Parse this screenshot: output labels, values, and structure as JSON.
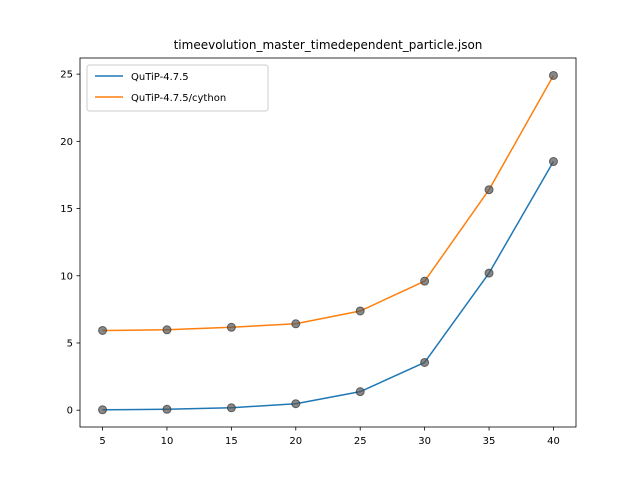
{
  "chart_data": {
    "type": "line",
    "title": "timeevolution_master_timedependent_particle.json",
    "xlabel": "",
    "ylabel": "",
    "x": [
      5,
      10,
      15,
      20,
      25,
      30,
      35,
      40
    ],
    "xlim": [
      3.25,
      41.75
    ],
    "ylim": [
      -1.25,
      26.2
    ],
    "xticks": [
      5,
      10,
      15,
      20,
      25,
      30,
      35,
      40
    ],
    "yticks": [
      0,
      5,
      10,
      15,
      20,
      25
    ],
    "grid": false,
    "legend_position": "top-left",
    "series": [
      {
        "name": "QuTiP-4.7.5",
        "color": "#1f77b4",
        "values": [
          0.03,
          0.07,
          0.18,
          0.48,
          1.38,
          3.55,
          10.2,
          18.5
        ]
      },
      {
        "name": "QuTiP-4.7.5/cython",
        "color": "#ff7f0e",
        "values": [
          5.93,
          5.98,
          6.17,
          6.43,
          7.38,
          9.6,
          16.4,
          24.9
        ]
      }
    ],
    "marker_color": "#555555"
  }
}
